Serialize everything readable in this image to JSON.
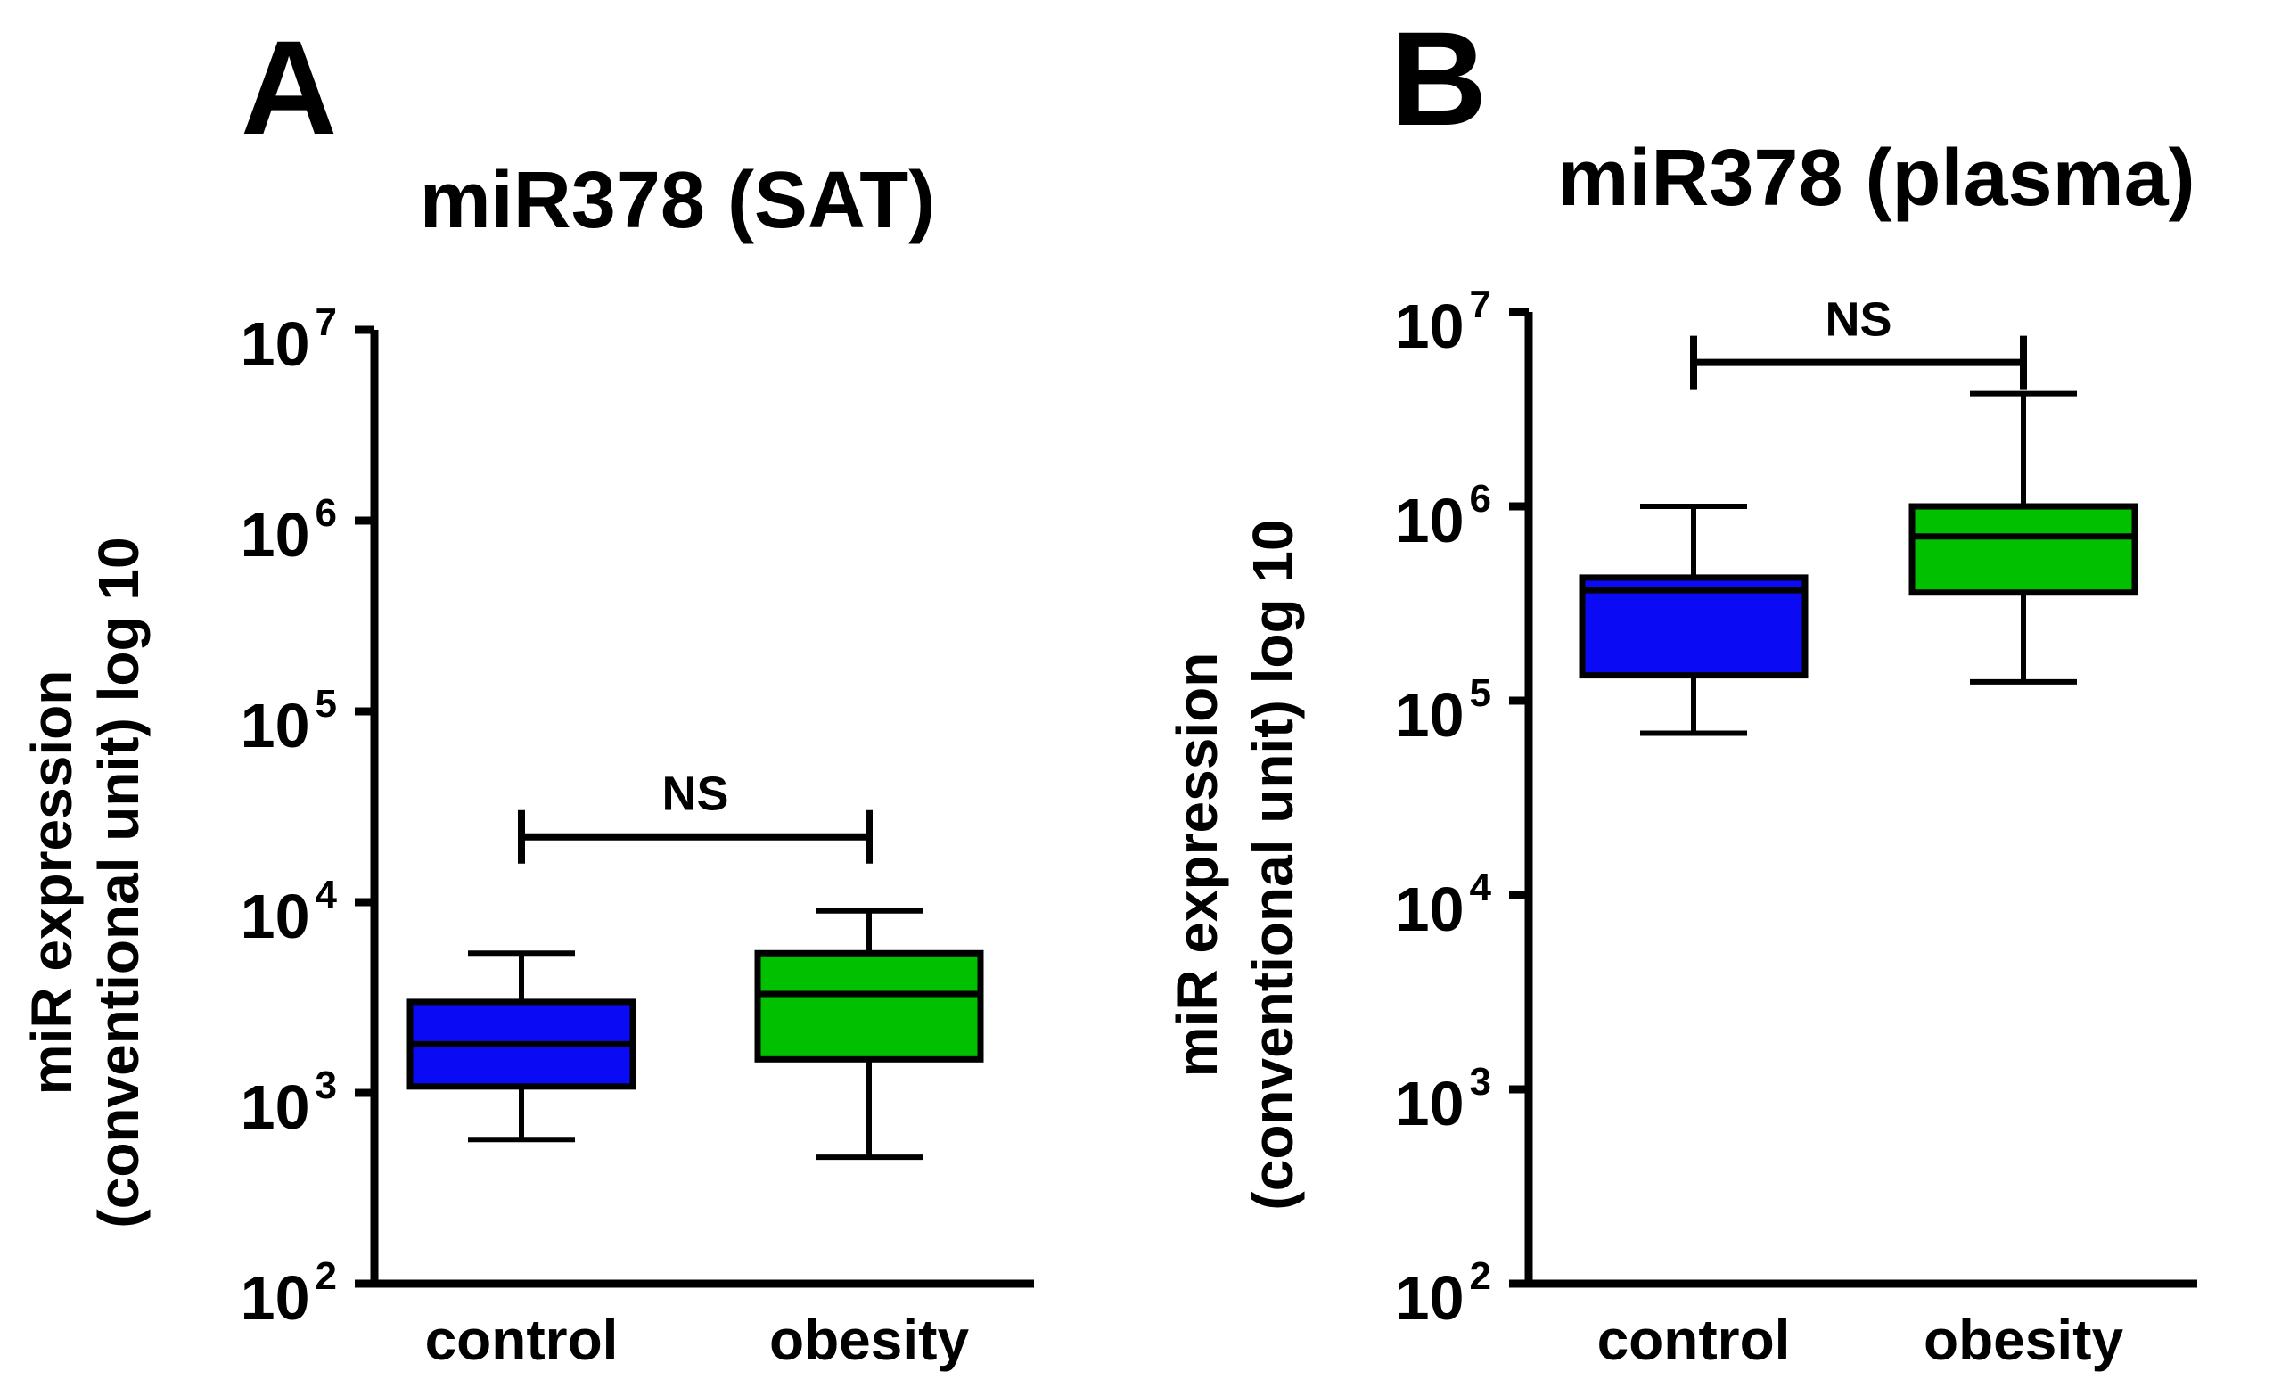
{
  "chart_data": [
    {
      "panel": "A",
      "type": "box",
      "title": "miR378 (SAT)",
      "ylabel_line1": "miR expression",
      "ylabel_line2": "(conventional unit) log 10",
      "yscale": "log10",
      "ylim": [
        100,
        10000000
      ],
      "yticks": [
        {
          "base": "10",
          "exp": "2",
          "value": 100
        },
        {
          "base": "10",
          "exp": "3",
          "value": 1000
        },
        {
          "base": "10",
          "exp": "4",
          "value": 10000
        },
        {
          "base": "10",
          "exp": "5",
          "value": 100000
        },
        {
          "base": "10",
          "exp": "6",
          "value": 1000000
        },
        {
          "base": "10",
          "exp": "7",
          "value": 10000000
        }
      ],
      "categories": [
        "control",
        "obesity"
      ],
      "boxes": [
        {
          "category": "control",
          "color": "#0a0af5",
          "min": 570,
          "q1": 1080,
          "median": 1800,
          "q3": 3000,
          "max": 5400
        },
        {
          "category": "obesity",
          "color": "#00c000",
          "min": 460,
          "q1": 1500,
          "median": 3300,
          "q3": 5400,
          "max": 9000
        }
      ],
      "comparison": {
        "from": "control",
        "to": "obesity",
        "label": "NS",
        "y": 22000
      }
    },
    {
      "panel": "B",
      "type": "box",
      "title": "miR378 (plasma)",
      "ylabel_line1": "miR expression",
      "ylabel_line2": "(conventional unit) log 10",
      "yscale": "log10",
      "ylim": [
        100,
        10000000
      ],
      "yticks": [
        {
          "base": "10",
          "exp": "2",
          "value": 100
        },
        {
          "base": "10",
          "exp": "3",
          "value": 1000
        },
        {
          "base": "10",
          "exp": "4",
          "value": 10000
        },
        {
          "base": "10",
          "exp": "5",
          "value": 100000
        },
        {
          "base": "10",
          "exp": "6",
          "value": 1000000
        },
        {
          "base": "10",
          "exp": "7",
          "value": 10000000
        }
      ],
      "categories": [
        "control",
        "obesity"
      ],
      "boxes": [
        {
          "category": "control",
          "color": "#0a0af5",
          "min": 68000,
          "q1": 135000,
          "median": 370000,
          "q3": 430000,
          "max": 1000000
        },
        {
          "category": "obesity",
          "color": "#00c000",
          "min": 125000,
          "q1": 360000,
          "median": 700000,
          "q3": 1000000,
          "max": 3800000
        }
      ],
      "comparison": {
        "from": "control",
        "to": "obesity",
        "label": "NS",
        "y": 5500000
      }
    }
  ]
}
